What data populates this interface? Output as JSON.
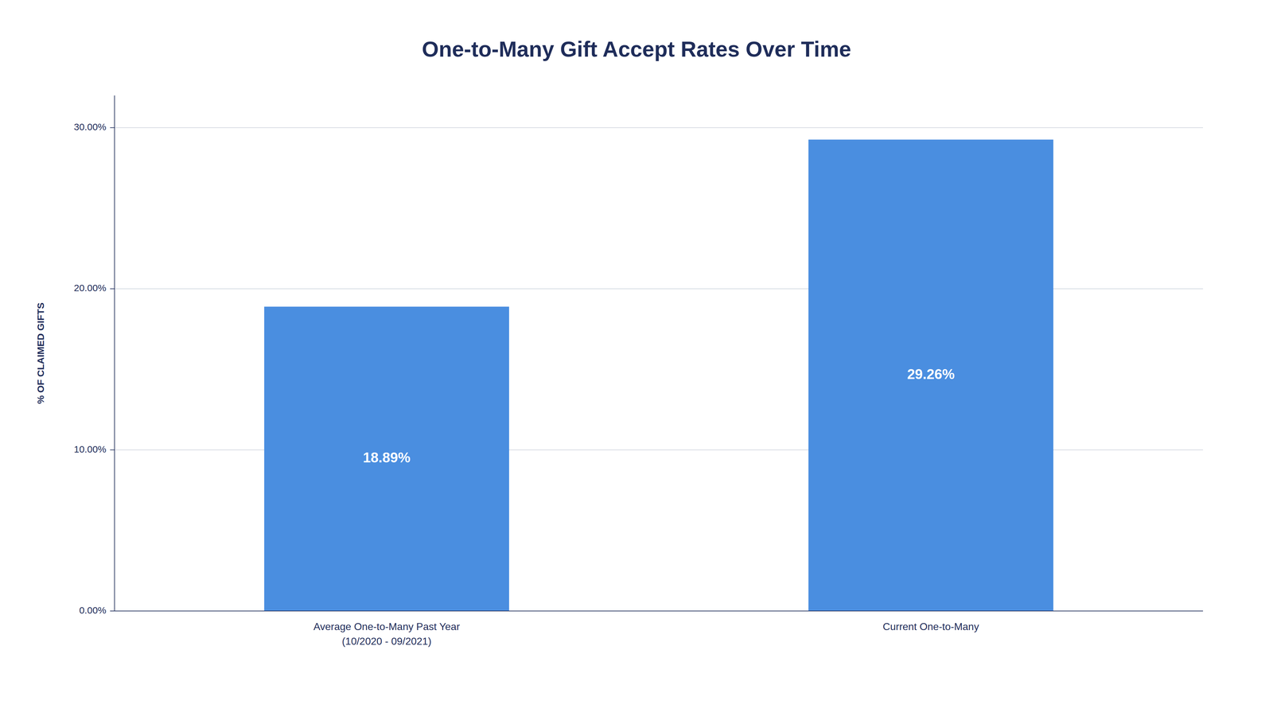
{
  "chart_data": {
    "type": "bar",
    "title": "One-to-Many Gift Accept Rates Over Time",
    "categories": [
      "Average One-to-Many Past Year\n(10/2020 - 09/2021)",
      "Current One-to-Many"
    ],
    "values": [
      18.89,
      29.26
    ],
    "value_labels": [
      "18.89%",
      "29.26%"
    ],
    "data_labels": true,
    "ylabel": "% OF CLAIMED GIFTS",
    "ylim": [
      0,
      32
    ],
    "yticks": [
      {
        "value": 0,
        "label": "0.00%"
      },
      {
        "value": 10,
        "label": "10.00%"
      },
      {
        "value": 20,
        "label": "20.00%"
      },
      {
        "value": 30,
        "label": "30.00%"
      }
    ],
    "grid": true
  }
}
